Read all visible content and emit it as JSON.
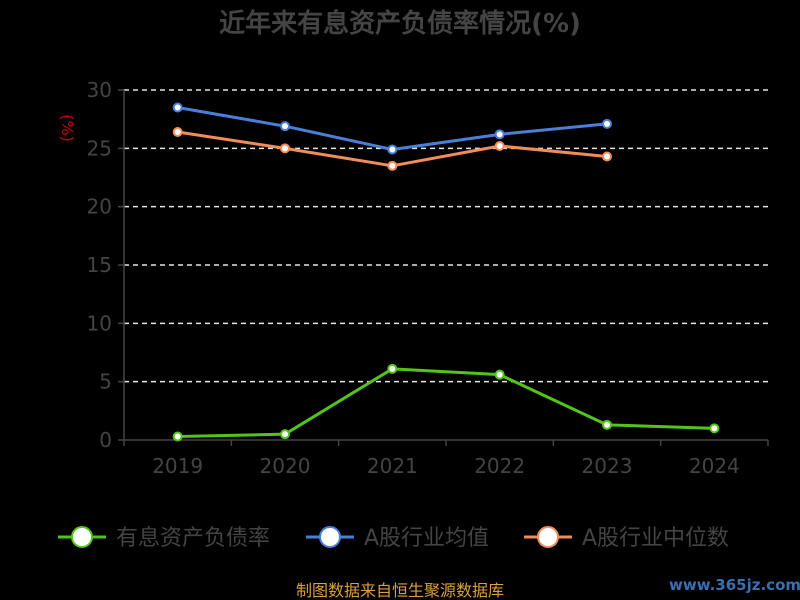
{
  "chart_data": {
    "type": "line",
    "title": "近年来有息资产负债率情况(%)",
    "ylabel": "(%)",
    "xlabel": "",
    "categories": [
      "2019",
      "2020",
      "2021",
      "2022",
      "2023",
      "2024"
    ],
    "yticks": [
      "0",
      "5",
      "10",
      "15",
      "20",
      "25",
      "30"
    ],
    "ylim": [
      0,
      30
    ],
    "grid": true,
    "legend_position": "bottom",
    "series": [
      {
        "name": "有息资产负债率",
        "color": "#52c41a",
        "values": [
          0.3,
          0.5,
          6.1,
          5.6,
          1.3,
          1.0
        ]
      },
      {
        "name": "A股行业均值",
        "color": "#4a7fd9",
        "values": [
          28.5,
          26.9,
          24.9,
          26.2,
          27.1,
          null
        ]
      },
      {
        "name": "A股行业中位数",
        "color": "#f28c5a",
        "values": [
          26.4,
          25.0,
          23.5,
          25.2,
          24.3,
          null
        ]
      }
    ]
  },
  "footer": {
    "source": "制图数据来自恒生聚源数据库",
    "watermark": "www.365jz.com"
  }
}
